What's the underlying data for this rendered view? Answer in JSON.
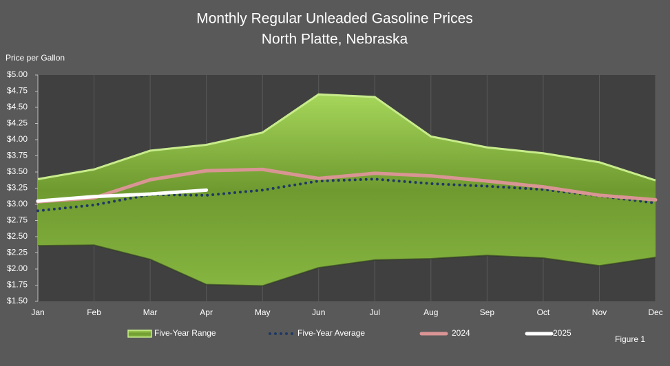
{
  "chart_data": {
    "type": "range-line",
    "title": "Monthly Regular Unleaded Gasoline Prices",
    "subtitle": "North Platte, Nebraska",
    "y_label": "Price per Gallon",
    "annotation": "Figure 1",
    "categories": [
      "Jan",
      "Feb",
      "Mar",
      "Apr",
      "May",
      "Jun",
      "Jul",
      "Aug",
      "Sep",
      "Oct",
      "Nov",
      "Dec"
    ],
    "range": {
      "name": "Five-Year Range",
      "color": "#7aa83a",
      "upper": [
        3.39,
        3.54,
        3.83,
        3.92,
        4.11,
        4.7,
        4.66,
        4.05,
        3.88,
        3.79,
        3.65,
        3.37
      ],
      "lower": [
        2.36,
        2.37,
        2.15,
        1.76,
        1.74,
        2.02,
        2.14,
        2.16,
        2.21,
        2.17,
        2.05,
        2.18
      ]
    },
    "series": [
      {
        "name": "Five-Year Average",
        "color": "#1f3864",
        "style": "dotted",
        "values": [
          2.9,
          2.99,
          3.15,
          3.14,
          3.22,
          3.36,
          3.39,
          3.32,
          3.28,
          3.23,
          3.13,
          3.02
        ]
      },
      {
        "name": "2024",
        "color": "#d99594",
        "style": "solid",
        "values": [
          3.04,
          3.1,
          3.38,
          3.52,
          3.54,
          3.4,
          3.48,
          3.44,
          3.36,
          3.27,
          3.14,
          3.07
        ]
      },
      {
        "name": "2025",
        "color": "#ffffff",
        "style": "solid",
        "values": [
          3.05,
          3.12,
          3.16,
          3.22,
          null,
          null,
          null,
          null,
          null,
          null,
          null,
          null
        ]
      }
    ],
    "ylim": [
      1.5,
      5.0
    ],
    "yticks": [
      {
        "value": 1.5,
        "label": "$1.50"
      },
      {
        "value": 1.75,
        "label": "$1.75"
      },
      {
        "value": 2.0,
        "label": "$2.00"
      },
      {
        "value": 2.25,
        "label": "$2.25"
      },
      {
        "value": 2.5,
        "label": "$2.50"
      },
      {
        "value": 2.75,
        "label": "$2.75"
      },
      {
        "value": 3.0,
        "label": "$3.00"
      },
      {
        "value": 3.25,
        "label": "$3.25"
      },
      {
        "value": 3.5,
        "label": "$3.50"
      },
      {
        "value": 3.75,
        "label": "$3.75"
      },
      {
        "value": 4.0,
        "label": "$4.00"
      },
      {
        "value": 4.25,
        "label": "$4.25"
      },
      {
        "value": 4.5,
        "label": "$4.50"
      },
      {
        "value": 4.75,
        "label": "$4.75"
      },
      {
        "value": 5.0,
        "label": "$5.00"
      }
    ],
    "grid": true
  }
}
